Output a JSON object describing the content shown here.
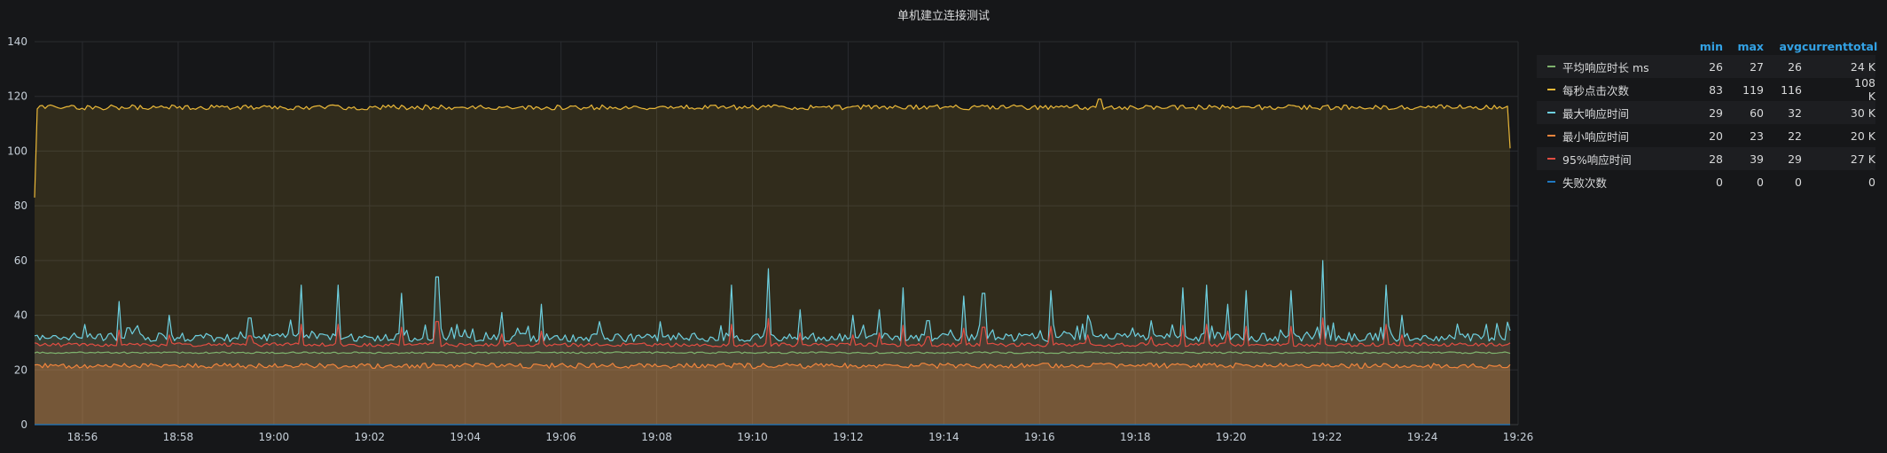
{
  "panel": {
    "title": "单机建立连接测试"
  },
  "legend": {
    "headers": {
      "min": "min",
      "max": "max",
      "avg": "avg",
      "current": "current",
      "total": "total"
    },
    "rows": [
      {
        "name": "平均响应时长 ms",
        "color": "#7eb26d",
        "min": "26",
        "max": "27",
        "avg": "26",
        "current": "",
        "total": "24 K"
      },
      {
        "name": "每秒点击次数",
        "color": "#eab839",
        "min": "83",
        "max": "119",
        "avg": "116",
        "current": "",
        "total": "108 K"
      },
      {
        "name": "最大响应时间",
        "color": "#6ed0e0",
        "min": "29",
        "max": "60",
        "avg": "32",
        "current": "",
        "total": "30 K"
      },
      {
        "name": "最小响应时间",
        "color": "#ef843c",
        "min": "20",
        "max": "23",
        "avg": "22",
        "current": "",
        "total": "20 K"
      },
      {
        "name": "95%响应时间",
        "color": "#e24d42",
        "min": "28",
        "max": "39",
        "avg": "29",
        "current": "",
        "total": "27 K"
      },
      {
        "name": "失败次数",
        "color": "#1f78c1",
        "min": "0",
        "max": "0",
        "avg": "0",
        "current": "",
        "total": "0"
      }
    ]
  },
  "chart_data": {
    "type": "area",
    "title": "单机建立连接测试",
    "xlabel": "",
    "ylabel": "",
    "x_ticks": [
      "18:56",
      "18:58",
      "19:00",
      "19:02",
      "19:04",
      "19:06",
      "19:08",
      "19:10",
      "19:12",
      "19:14",
      "19:16",
      "19:18",
      "19:20",
      "19:22",
      "19:24",
      "19:26"
    ],
    "y_ticks": [
      "0",
      "20",
      "40",
      "60",
      "80",
      "100",
      "120",
      "140"
    ],
    "x_range": [
      "18:55",
      "19:26"
    ],
    "ylim": [
      0,
      140
    ],
    "grid": true,
    "legend_position": "right",
    "series": [
      {
        "name": "平均响应时长 ms",
        "color": "#7eb26d",
        "base": 26,
        "min": 26,
        "max": 27
      },
      {
        "name": "每秒点击次数",
        "color": "#eab839",
        "base": 116,
        "min": 83,
        "max": 119,
        "first": 83,
        "last": 101
      },
      {
        "name": "最大响应时间",
        "color": "#6ed0e0",
        "base": 31.5,
        "min": 29,
        "max": 60,
        "spikes": [
          [
            "18:56:45",
            45
          ],
          [
            "18:57:50",
            40
          ],
          [
            "18:59:30",
            39
          ],
          [
            "19:00:35",
            51
          ],
          [
            "19:01:20",
            51
          ],
          [
            "19:02:40",
            48
          ],
          [
            "19:03:25",
            54
          ],
          [
            "19:04:45",
            41
          ],
          [
            "19:05:35",
            44
          ],
          [
            "19:09:35",
            51
          ],
          [
            "19:10:20",
            57
          ],
          [
            "19:11:00",
            42
          ],
          [
            "19:12:05",
            40
          ],
          [
            "19:12:40",
            42
          ],
          [
            "19:13:10",
            50
          ],
          [
            "19:13:40",
            38
          ],
          [
            "19:14:25",
            47
          ],
          [
            "19:14:50",
            48
          ],
          [
            "19:16:15",
            49
          ],
          [
            "19:17:00",
            40
          ],
          [
            "19:18:20",
            38
          ],
          [
            "19:19:00",
            50
          ],
          [
            "19:19:30",
            51
          ],
          [
            "19:19:55",
            44
          ],
          [
            "19:20:20",
            49
          ],
          [
            "19:21:15",
            49
          ],
          [
            "19:21:55",
            60
          ],
          [
            "19:23:15",
            51
          ],
          [
            "19:23:35",
            40
          ]
        ]
      },
      {
        "name": "最小响应时间",
        "color": "#ef843c",
        "base": 21.5,
        "min": 20,
        "max": 23
      },
      {
        "name": "95%响应时间",
        "color": "#e24d42",
        "base": 29,
        "min": 28,
        "max": 39
      },
      {
        "name": "失败次数",
        "color": "#1f78c1",
        "base": 0,
        "min": 0,
        "max": 0
      }
    ]
  }
}
